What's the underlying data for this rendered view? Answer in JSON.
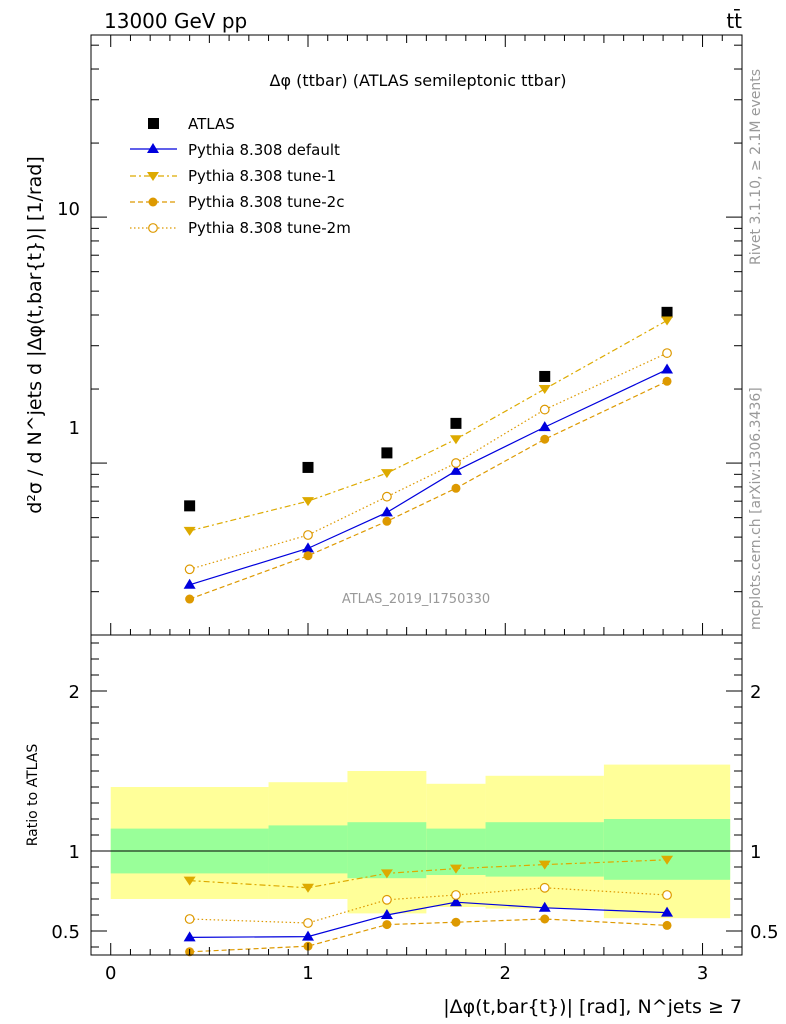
{
  "header": {
    "left": "13000 GeV pp",
    "right": "tt̄"
  },
  "side": {
    "rivet": "Rivet 3.1.10, ≥ 2.1M events",
    "mcplots": "mcplots.cern.ch [arXiv:1306.3436]"
  },
  "colors": {
    "atlas": "#000000",
    "default": "#0000dd",
    "tune1": "#ddaa00",
    "tune2c": "#dd9900",
    "tune2m": "#dd9900",
    "band_inner": "#99ff99",
    "band_outer": "#ffff99"
  },
  "chart_data": [
    {
      "type": "scatter",
      "panel": "main",
      "title": "Δφ (ttbar) (ATLAS semileptonic ttbar)",
      "ylabel": "d²σ / d N^jets d |Δφ(t,bar{t})| [1/rad]",
      "watermark": "ATLAS_2019_I1750330",
      "yscale": "log",
      "ylim": [
        0.2,
        55
      ],
      "xlim": [
        -0.1,
        3.2
      ],
      "y_ticklabels": [
        "1",
        "10"
      ],
      "legend_position": "top-left",
      "x": [
        0.4,
        1.0,
        1.4,
        1.75,
        2.2,
        2.82
      ],
      "series": [
        {
          "name": "ATLAS",
          "key": "atlas",
          "marker": "square",
          "values": [
            0.67,
            0.96,
            1.1,
            1.45,
            2.25,
            4.1
          ]
        },
        {
          "name": "Pythia 8.308 default",
          "key": "default",
          "marker": "triangle-up",
          "line": "solid",
          "values": [
            0.32,
            0.45,
            0.63,
            0.93,
            1.4,
            2.4
          ]
        },
        {
          "name": "Pythia 8.308 tune-1",
          "key": "tune1",
          "marker": "triangle-down",
          "line": "dashdot",
          "values": [
            0.53,
            0.7,
            0.91,
            1.25,
            2.0,
            3.8
          ]
        },
        {
          "name": "Pythia 8.308 tune-2c",
          "key": "tune2c",
          "marker": "circle",
          "line": "dashed",
          "values": [
            0.28,
            0.42,
            0.58,
            0.79,
            1.25,
            2.15
          ]
        },
        {
          "name": "Pythia 8.308 tune-2m",
          "key": "tune2m",
          "marker": "open-circle",
          "line": "dotted",
          "values": [
            0.37,
            0.51,
            0.73,
            1.0,
            1.65,
            2.8
          ]
        }
      ]
    },
    {
      "type": "scatter",
      "panel": "ratio",
      "ylabel": "Ratio to ATLAS",
      "xlabel": "|Δφ(t,bar{t})| [rad], N^jets ≥ 7",
      "ylim": [
        0.35,
        2.35
      ],
      "xlim": [
        -0.1,
        3.2
      ],
      "x_ticklabels": [
        "0",
        "1",
        "2",
        "3"
      ],
      "y_ticklabels": [
        "0.5",
        "1",
        "2"
      ],
      "bins": [
        [
          0.0,
          0.8
        ],
        [
          0.8,
          1.2
        ],
        [
          1.2,
          1.6
        ],
        [
          1.6,
          1.9
        ],
        [
          1.9,
          2.5
        ],
        [
          2.5,
          3.14
        ]
      ],
      "band_inner": [
        [
          0.86,
          1.14
        ],
        [
          0.86,
          1.16
        ],
        [
          0.83,
          1.18
        ],
        [
          0.85,
          1.14
        ],
        [
          0.84,
          1.18
        ],
        [
          0.82,
          1.2
        ]
      ],
      "band_outer": [
        [
          0.7,
          1.4
        ],
        [
          0.7,
          1.43
        ],
        [
          0.61,
          1.5
        ],
        [
          0.65,
          1.42
        ],
        [
          0.64,
          1.47
        ],
        [
          0.58,
          1.54
        ]
      ],
      "x": [
        0.4,
        1.0,
        1.4,
        1.75,
        2.2,
        2.82
      ],
      "series": [
        {
          "name": "Pythia 8.308 default",
          "key": "default",
          "marker": "triangle-up",
          "line": "solid",
          "values": [
            0.46,
            0.465,
            0.6,
            0.68,
            0.645,
            0.615
          ]
        },
        {
          "name": "Pythia 8.308 tune-1",
          "key": "tune1",
          "marker": "triangle-down",
          "line": "dashdot",
          "values": [
            0.815,
            0.77,
            0.86,
            0.89,
            0.915,
            0.945
          ]
        },
        {
          "name": "Pythia 8.308 tune-2c",
          "key": "tune2c",
          "marker": "circle",
          "line": "dashed",
          "values": [
            0.37,
            0.405,
            0.54,
            0.555,
            0.575,
            0.535
          ]
        },
        {
          "name": "Pythia 8.308 tune-2m",
          "key": "tune2m",
          "marker": "open-circle",
          "line": "dotted",
          "values": [
            0.575,
            0.55,
            0.695,
            0.725,
            0.77,
            0.725
          ]
        }
      ]
    }
  ]
}
